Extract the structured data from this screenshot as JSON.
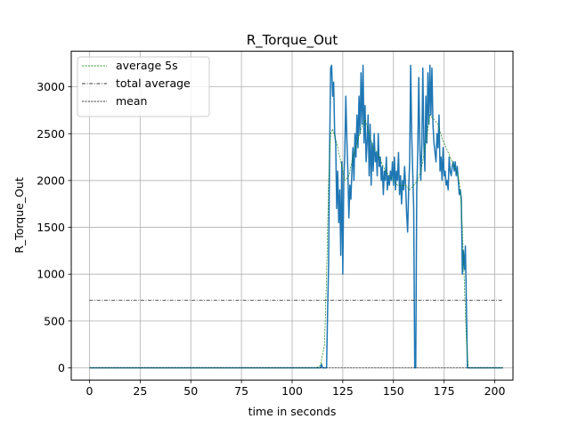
{
  "chart_data": {
    "type": "line",
    "title": "R_Torque_Out",
    "xlabel": "time in seconds",
    "ylabel": "R_Torque_Out",
    "xlim": [
      -9,
      209
    ],
    "ylim": [
      -130,
      3380
    ],
    "xticks": [
      0,
      25,
      50,
      75,
      100,
      125,
      150,
      175,
      200
    ],
    "yticks": [
      0,
      500,
      1000,
      1500,
      2000,
      2500,
      3000
    ],
    "grid": true,
    "legend_position": "top-left",
    "series": [
      {
        "name": "average 5s",
        "color": "#008000",
        "style": "dashed",
        "points": [
          [
            0,
            0
          ],
          [
            112,
            0
          ],
          [
            114,
            30
          ],
          [
            116,
            250
          ],
          [
            117,
            1000
          ],
          [
            118,
            2000
          ],
          [
            119,
            2500
          ],
          [
            120,
            2550
          ],
          [
            122,
            2400
          ],
          [
            124,
            2200
          ],
          [
            126,
            2000
          ],
          [
            128,
            2050
          ],
          [
            130,
            2250
          ],
          [
            132,
            2400
          ],
          [
            134,
            2550
          ],
          [
            136,
            2650
          ],
          [
            138,
            2500
          ],
          [
            140,
            2350
          ],
          [
            142,
            2300
          ],
          [
            144,
            2200
          ],
          [
            146,
            2100
          ],
          [
            148,
            2050
          ],
          [
            150,
            2000
          ],
          [
            152,
            1950
          ],
          [
            154,
            1950
          ],
          [
            156,
            1950
          ],
          [
            158,
            1900
          ],
          [
            160,
            1950
          ],
          [
            162,
            2000
          ],
          [
            164,
            2150
          ],
          [
            166,
            2400
          ],
          [
            168,
            2700
          ],
          [
            170,
            2650
          ],
          [
            172,
            2600
          ],
          [
            174,
            2450
          ],
          [
            176,
            2350
          ],
          [
            178,
            2250
          ],
          [
            180,
            2150
          ],
          [
            182,
            2050
          ],
          [
            183,
            1900
          ],
          [
            184,
            1500
          ],
          [
            185,
            900
          ],
          [
            186,
            300
          ],
          [
            187,
            0
          ],
          [
            204,
            0
          ]
        ]
      },
      {
        "name": "total average",
        "color": "#000000",
        "style": "dashdot",
        "points": [
          [
            0,
            720
          ],
          [
            204,
            720
          ]
        ]
      },
      {
        "name": "mean",
        "color": "#000000",
        "style": "dashed",
        "points": [
          [
            0,
            0
          ],
          [
            204,
            0
          ]
        ]
      },
      {
        "name": "",
        "color": "#1f77b4",
        "style": "solid",
        "points": [
          [
            0,
            0
          ],
          [
            114,
            0
          ],
          [
            114.5,
            40
          ],
          [
            115,
            0
          ],
          [
            117,
            0
          ],
          [
            117.5,
            600
          ],
          [
            118,
            1100
          ],
          [
            118.5,
            2300
          ],
          [
            119,
            3200
          ],
          [
            119.5,
            3230
          ],
          [
            120,
            2900
          ],
          [
            120.5,
            3050
          ],
          [
            121,
            2500
          ],
          [
            121.5,
            2400
          ],
          [
            122,
            1700
          ],
          [
            122.5,
            2100
          ],
          [
            123,
            1550
          ],
          [
            123.5,
            1900
          ],
          [
            124,
            1200
          ],
          [
            124.5,
            2200
          ],
          [
            125,
            1000
          ],
          [
            125.5,
            2000
          ],
          [
            126,
            2300
          ],
          [
            126.5,
            2900
          ],
          [
            127,
            2450
          ],
          [
            127.5,
            2100
          ],
          [
            128,
            1600
          ],
          [
            128.5,
            1950
          ],
          [
            129,
            1800
          ],
          [
            129.5,
            2100
          ],
          [
            130,
            2350
          ],
          [
            130.5,
            2000
          ],
          [
            131,
            2500
          ],
          [
            131.5,
            2250
          ],
          [
            132,
            2700
          ],
          [
            132.5,
            2350
          ],
          [
            133,
            2900
          ],
          [
            133.5,
            2500
          ],
          [
            134,
            3150
          ],
          [
            134.5,
            2600
          ],
          [
            135,
            3230
          ],
          [
            135.5,
            2400
          ],
          [
            136,
            2800
          ],
          [
            136.5,
            2200
          ],
          [
            137,
            2400
          ],
          [
            137.5,
            2700
          ],
          [
            138,
            2050
          ],
          [
            138.5,
            2600
          ],
          [
            139,
            1950
          ],
          [
            139.5,
            2400
          ],
          [
            140,
            2100
          ],
          [
            140.5,
            2500
          ],
          [
            141,
            2200
          ],
          [
            141.5,
            2300
          ],
          [
            142,
            2050
          ],
          [
            142.5,
            2500
          ],
          [
            143,
            2150
          ],
          [
            143.5,
            2250
          ],
          [
            144,
            2000
          ],
          [
            144.5,
            2150
          ],
          [
            145,
            1850
          ],
          [
            145.5,
            2100
          ],
          [
            146,
            2000
          ],
          [
            146.5,
            2250
          ],
          [
            147,
            1900
          ],
          [
            147.5,
            2050
          ],
          [
            148,
            1950
          ],
          [
            148.5,
            2100
          ],
          [
            149,
            2000
          ],
          [
            149.5,
            2200
          ],
          [
            150,
            1950
          ],
          [
            150.5,
            2250
          ],
          [
            151,
            1900
          ],
          [
            151.5,
            2100
          ],
          [
            152,
            2000
          ],
          [
            152.5,
            2300
          ],
          [
            153,
            1850
          ],
          [
            153.5,
            2050
          ],
          [
            154,
            1750
          ],
          [
            154.5,
            2000
          ],
          [
            155,
            1900
          ],
          [
            155.5,
            2150
          ],
          [
            156,
            1950
          ],
          [
            156.5,
            1650
          ],
          [
            157,
            1450
          ],
          [
            157.5,
            1900
          ],
          [
            158,
            2200
          ],
          [
            158.5,
            3230
          ],
          [
            159,
            2500
          ],
          [
            159.5,
            2100
          ],
          [
            160,
            1700
          ],
          [
            160.5,
            0
          ],
          [
            161,
            0
          ],
          [
            161.5,
            1900
          ],
          [
            162,
            2300
          ],
          [
            162.5,
            3100
          ],
          [
            163,
            2400
          ],
          [
            163.5,
            2000
          ],
          [
            164,
            2350
          ],
          [
            164.5,
            3200
          ],
          [
            165,
            2400
          ],
          [
            165.5,
            2100
          ],
          [
            166,
            2900
          ],
          [
            166.5,
            2400
          ],
          [
            167,
            3150
          ],
          [
            167.5,
            2600
          ],
          [
            168,
            3230
          ],
          [
            168.5,
            2700
          ],
          [
            169,
            3200
          ],
          [
            169.5,
            2600
          ],
          [
            170,
            2400
          ],
          [
            170.5,
            2300
          ],
          [
            171,
            2200
          ],
          [
            171.5,
            2500
          ],
          [
            172,
            2350
          ],
          [
            172.5,
            2700
          ],
          [
            173,
            2100
          ],
          [
            173.5,
            2250
          ],
          [
            174,
            2000
          ],
          [
            174.5,
            2350
          ],
          [
            175,
            2050
          ],
          [
            175.5,
            2100
          ],
          [
            176,
            1950
          ],
          [
            176.5,
            2000
          ],
          [
            177,
            1900
          ],
          [
            177.5,
            2250
          ],
          [
            178,
            2100
          ],
          [
            178.5,
            2050
          ],
          [
            179,
            2150
          ],
          [
            179.5,
            2200
          ],
          [
            180,
            2100
          ],
          [
            180.5,
            2200
          ],
          [
            181,
            2050
          ],
          [
            181.5,
            2150
          ],
          [
            182,
            2000
          ],
          [
            182.5,
            1850
          ],
          [
            183,
            1900
          ],
          [
            183.5,
            1800
          ],
          [
            184,
            1000
          ],
          [
            184.5,
            1250
          ],
          [
            185,
            1050
          ],
          [
            185.5,
            1300
          ],
          [
            186,
            700
          ],
          [
            186.5,
            0
          ],
          [
            204,
            0
          ]
        ]
      }
    ]
  }
}
